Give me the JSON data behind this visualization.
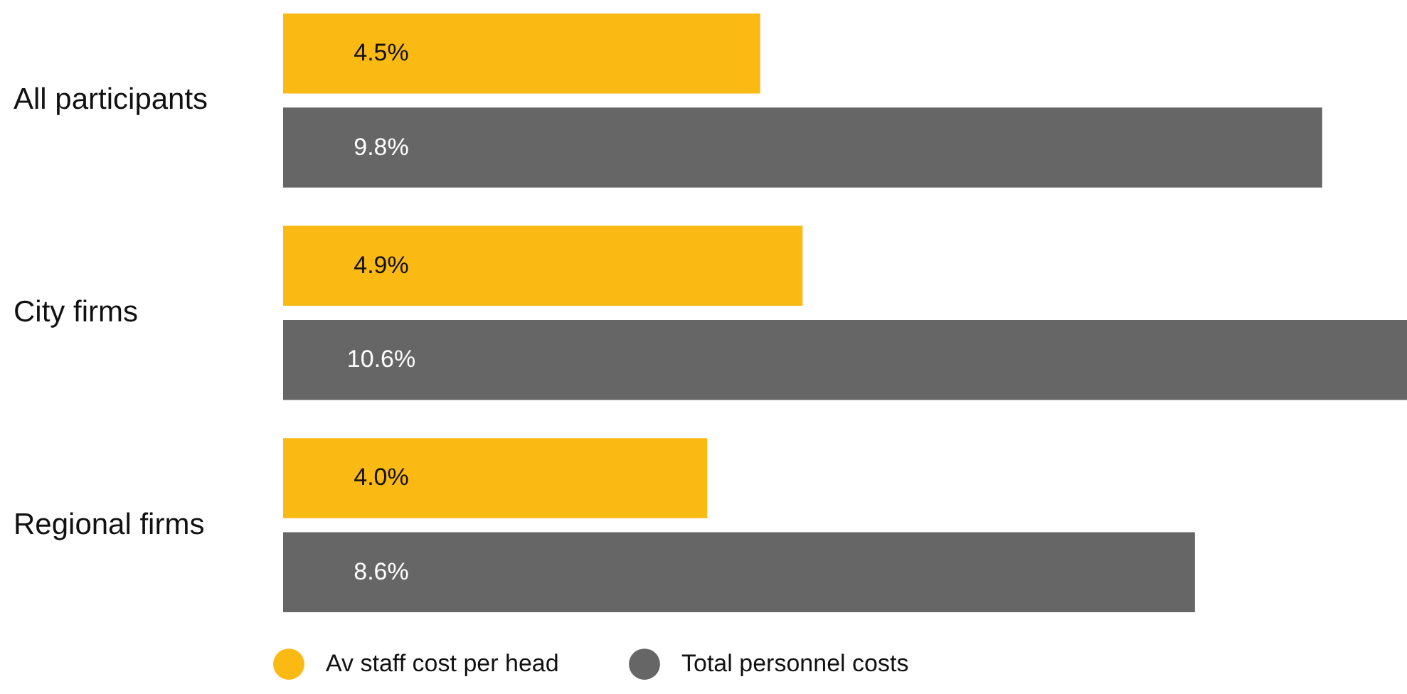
{
  "chart_data": {
    "type": "bar",
    "orientation": "horizontal",
    "categories": [
      "All participants",
      "City firms",
      "Regional firms"
    ],
    "series": [
      {
        "name": "Av staff cost per head",
        "color": "#fbb913",
        "values": [
          4.5,
          4.9,
          4.0
        ],
        "value_labels": [
          "4.5%",
          "4.9%",
          "4.0%"
        ]
      },
      {
        "name": "Total personnel costs",
        "color": "#666666",
        "values": [
          9.8,
          10.6,
          8.6
        ],
        "value_labels": [
          "9.8%",
          "10.6%",
          "8.6%"
        ]
      }
    ],
    "xlim": [
      0,
      10.6
    ],
    "legend": "bottom left"
  }
}
